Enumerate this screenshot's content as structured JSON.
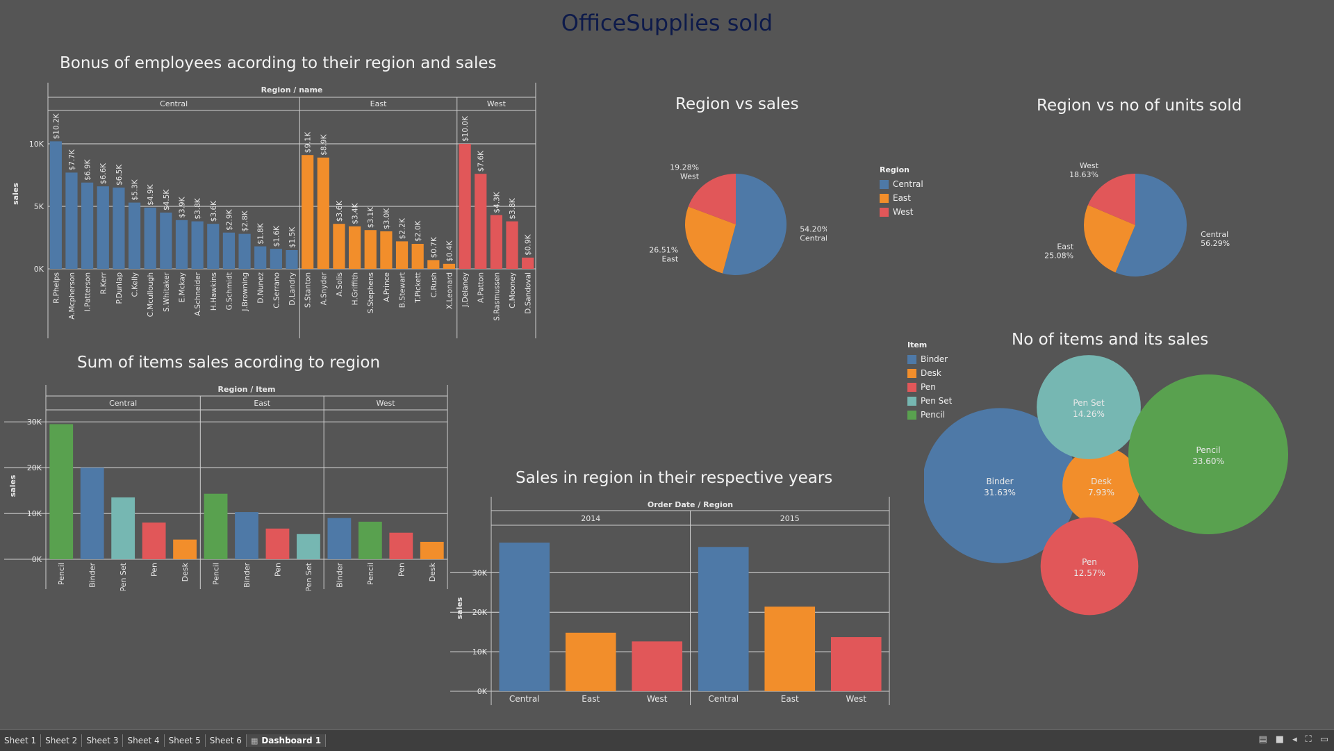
{
  "dashboard_title": "OfficeSupplies sold",
  "colors": {
    "Central": "#4e79a7",
    "East": "#f28e2b",
    "West": "#e15759",
    "Binder": "#4e79a7",
    "Desk": "#f28e2b",
    "Pen": "#e15759",
    "Pen Set": "#76b7b2",
    "Pencil": "#59a14f"
  },
  "sheet_titles": {
    "bonus": "Bonus of employees acording to their region and sales",
    "items": "Sum of items sales acording to region",
    "years": "Sales in region in their respective years",
    "pie_sales": "Region vs sales",
    "pie_units": "Region vs no of units sold",
    "bubbles": "No of  items and its sales"
  },
  "legends": {
    "region": {
      "title": "Region",
      "items": [
        "Central",
        "East",
        "West"
      ]
    },
    "item": {
      "title": "Item",
      "items": [
        "Binder",
        "Desk",
        "Pen",
        "Pen Set",
        "Pencil"
      ]
    }
  },
  "chart_data": [
    {
      "id": "bonus",
      "type": "bar",
      "header": "Region / name",
      "ylabel": "sales",
      "ylim": [
        0,
        12000
      ],
      "yticks": [
        {
          "v": 0,
          "label": "0K"
        },
        {
          "v": 5000,
          "label": "5K"
        },
        {
          "v": 10000,
          "label": "10K"
        }
      ],
      "groups": [
        {
          "name": "Central",
          "color_key": "Central",
          "bars": [
            {
              "label": "R.Phelps",
              "value": 10200,
              "text": "$10.2K"
            },
            {
              "label": "A.Mcpherson",
              "value": 7700,
              "text": "$7.7K"
            },
            {
              "label": "I.Patterson",
              "value": 6900,
              "text": "$6.9K"
            },
            {
              "label": "R.Kerr",
              "value": 6600,
              "text": "$6.6K"
            },
            {
              "label": "P.Dunlap",
              "value": 6500,
              "text": "$6.5K"
            },
            {
              "label": "C.Kelly",
              "value": 5300,
              "text": "$5.3K"
            },
            {
              "label": "C.Mcullough",
              "value": 4900,
              "text": "$4.9K"
            },
            {
              "label": "S.Whitaker",
              "value": 4500,
              "text": "$4.5K"
            },
            {
              "label": "E.Mckay",
              "value": 3900,
              "text": "$3.9K"
            },
            {
              "label": "A.Schneider",
              "value": 3800,
              "text": "$3.8K"
            },
            {
              "label": "H.Hawkins",
              "value": 3600,
              "text": "$3.6K"
            },
            {
              "label": "G.Schmidt",
              "value": 2900,
              "text": "$2.9K"
            },
            {
              "label": "J.Browning",
              "value": 2800,
              "text": "$2.8K"
            },
            {
              "label": "D.Nunez",
              "value": 1800,
              "text": "$1.8K"
            },
            {
              "label": "C.Serrano",
              "value": 1600,
              "text": "$1.6K"
            },
            {
              "label": "D.Landry",
              "value": 1500,
              "text": "$1.5K"
            }
          ]
        },
        {
          "name": "East",
          "color_key": "East",
          "bars": [
            {
              "label": "S.Stanton",
              "value": 9100,
              "text": "$9.1K"
            },
            {
              "label": "A.Snyder",
              "value": 8900,
              "text": "$8.9K"
            },
            {
              "label": "A.Solis",
              "value": 3600,
              "text": "$3.6K"
            },
            {
              "label": "H.Griffith",
              "value": 3400,
              "text": "$3.4K"
            },
            {
              "label": "S.Stephens",
              "value": 3100,
              "text": "$3.1K"
            },
            {
              "label": "A.Prince",
              "value": 3000,
              "text": "$3.0K"
            },
            {
              "label": "B.Stewart",
              "value": 2200,
              "text": "$2.2K"
            },
            {
              "label": "T.Pickett",
              "value": 2000,
              "text": "$2.0K"
            },
            {
              "label": "C.Rush",
              "value": 700,
              "text": "$0.7K"
            },
            {
              "label": "X.Leonard",
              "value": 400,
              "text": "$0.4K"
            }
          ]
        },
        {
          "name": "West",
          "color_key": "West",
          "bars": [
            {
              "label": "J.Delaney",
              "value": 10000,
              "text": "$10.0K"
            },
            {
              "label": "A.Patton",
              "value": 7600,
              "text": "$7.6K"
            },
            {
              "label": "S.Rasmussen",
              "value": 4300,
              "text": "$4.3K"
            },
            {
              "label": "C.Mooney",
              "value": 3800,
              "text": "$3.8K"
            },
            {
              "label": "D.Sandoval",
              "value": 900,
              "text": "$0.9K"
            }
          ]
        }
      ]
    },
    {
      "id": "items",
      "type": "bar",
      "header": "Region / Item",
      "ylabel": "sales",
      "ylim": [
        0,
        32000
      ],
      "yticks": [
        {
          "v": 0,
          "label": "0K"
        },
        {
          "v": 10000,
          "label": "10K"
        },
        {
          "v": 20000,
          "label": "20K"
        },
        {
          "v": 30000,
          "label": "30K"
        }
      ],
      "groups": [
        {
          "name": "Central",
          "bars": [
            {
              "label": "Pencil",
              "value": 29500,
              "color_key": "Pencil"
            },
            {
              "label": "Binder",
              "value": 20000,
              "color_key": "Binder"
            },
            {
              "label": "Pen Set",
              "value": 13500,
              "color_key": "Pen Set"
            },
            {
              "label": "Pen",
              "value": 8000,
              "color_key": "Pen"
            },
            {
              "label": "Desk",
              "value": 4300,
              "color_key": "Desk"
            }
          ]
        },
        {
          "name": "East",
          "bars": [
            {
              "label": "Pencil",
              "value": 14300,
              "color_key": "Pencil"
            },
            {
              "label": "Binder",
              "value": 10300,
              "color_key": "Binder"
            },
            {
              "label": "Pen",
              "value": 6700,
              "color_key": "Pen"
            },
            {
              "label": "Pen Set",
              "value": 5500,
              "color_key": "Pen Set"
            }
          ]
        },
        {
          "name": "West",
          "bars": [
            {
              "label": "Binder",
              "value": 9000,
              "color_key": "Binder"
            },
            {
              "label": "Pencil",
              "value": 8200,
              "color_key": "Pencil"
            },
            {
              "label": "Pen",
              "value": 5800,
              "color_key": "Pen"
            },
            {
              "label": "Desk",
              "value": 3800,
              "color_key": "Desk"
            }
          ]
        }
      ]
    },
    {
      "id": "years",
      "type": "bar",
      "header": "Order Date / Region",
      "ylabel": "sales",
      "ylim": [
        0,
        42000
      ],
      "yticks": [
        {
          "v": 0,
          "label": "0K"
        },
        {
          "v": 10000,
          "label": "10K"
        },
        {
          "v": 20000,
          "label": "20K"
        },
        {
          "v": 30000,
          "label": "30K"
        }
      ],
      "groups": [
        {
          "name": "2014",
          "bars": [
            {
              "label": "Central",
              "value": 37600,
              "color_key": "Central"
            },
            {
              "label": "East",
              "value": 14800,
              "color_key": "East"
            },
            {
              "label": "West",
              "value": 12600,
              "color_key": "West"
            }
          ]
        },
        {
          "name": "2015",
          "bars": [
            {
              "label": "Central",
              "value": 36500,
              "color_key": "Central"
            },
            {
              "label": "East",
              "value": 21400,
              "color_key": "East"
            },
            {
              "label": "West",
              "value": 13700,
              "color_key": "West"
            }
          ]
        }
      ]
    },
    {
      "id": "pie_sales",
      "type": "pie",
      "slices": [
        {
          "name": "Central",
          "value": 54.2,
          "label": "54.20%\nCentral"
        },
        {
          "name": "East",
          "value": 26.51,
          "label": "26.51%\nEast"
        },
        {
          "name": "West",
          "value": 19.28,
          "label": "19.28%\nWest"
        }
      ]
    },
    {
      "id": "pie_units",
      "type": "pie",
      "slices": [
        {
          "name": "Central",
          "value": 56.29,
          "label": "Central\n56.29%"
        },
        {
          "name": "East",
          "value": 25.08,
          "label": "East\n25.08%"
        },
        {
          "name": "West",
          "value": 18.63,
          "label": "West\n18.63%"
        }
      ]
    },
    {
      "id": "bubbles",
      "type": "bubble",
      "items": [
        {
          "name": "Binder",
          "value": 31.63,
          "label": "31.63%"
        },
        {
          "name": "Desk",
          "value": 7.93,
          "label": "7.93%"
        },
        {
          "name": "Pen",
          "value": 12.57,
          "label": "12.57%"
        },
        {
          "name": "Pen Set",
          "value": 14.26,
          "label": "14.26%"
        },
        {
          "name": "Pencil",
          "value": 33.6,
          "label": "33.60%"
        }
      ]
    }
  ],
  "tabs": [
    "Sheet 1",
    "Sheet 2",
    "Sheet 3",
    "Sheet 4",
    "Sheet 5",
    "Sheet 6",
    "Dashboard 1"
  ],
  "active_tab": "Dashboard 1"
}
